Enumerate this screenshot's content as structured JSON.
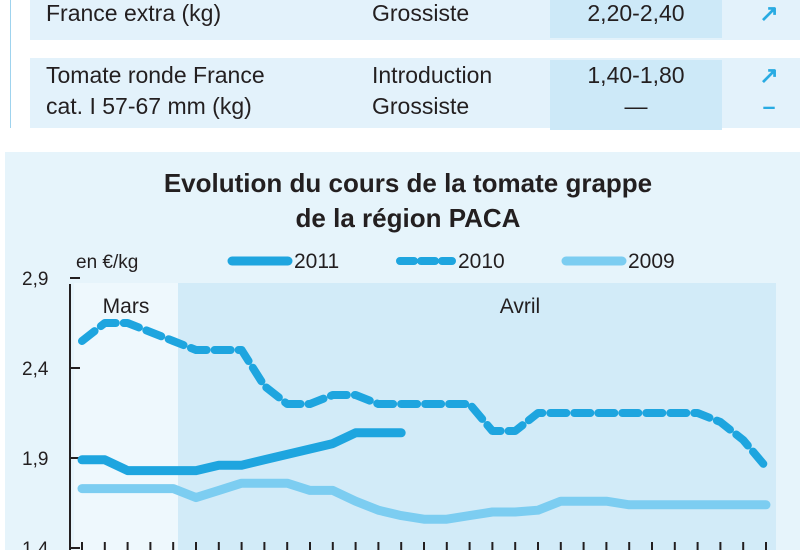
{
  "table": {
    "rows": [
      {
        "product": "France extra (kg)",
        "stage": "Grossiste",
        "price": "2,20-2,40",
        "trend": "↗"
      },
      {
        "product_line1": "Tomate ronde France",
        "product_line2": "cat. I 57-67 mm (kg)",
        "stage_line1": "Introduction",
        "stage_line2": "Grossiste",
        "price_line1": "1,40-1,80",
        "price_line2": "—",
        "trend_line1": "↗",
        "trend_line2": "–"
      }
    ]
  },
  "chart_data": {
    "type": "line",
    "title_line1": "Evolution du cours de la tomate grappe",
    "title_line2": "de la région PACA",
    "unit_label": "en €/kg",
    "ylim": [
      1.4,
      2.9
    ],
    "yticks": [
      "2,9",
      "2,4",
      "1,9",
      "1,4"
    ],
    "ytick_values": [
      2.9,
      2.4,
      1.9,
      1.4
    ],
    "months": [
      "Mars",
      "Avril"
    ],
    "series": [
      {
        "name": "2011",
        "color": "#1ea5df",
        "style": "solid-thick",
        "x": [
          0,
          1,
          2,
          3,
          4,
          5,
          6,
          7,
          8,
          9,
          10,
          11,
          12,
          13,
          14
        ],
        "values": [
          1.89,
          1.89,
          1.83,
          1.83,
          1.83,
          1.83,
          1.86,
          1.86,
          1.89,
          1.92,
          1.95,
          1.98,
          2.04,
          2.04,
          2.04
        ]
      },
      {
        "name": "2010",
        "color": "#1ea5df",
        "style": "dashed",
        "x": [
          0,
          1,
          2,
          3,
          4,
          5,
          6,
          7,
          8,
          9,
          10,
          11,
          12,
          13,
          14,
          15,
          16,
          17,
          18,
          19,
          20,
          21,
          22,
          23,
          24,
          25,
          26,
          27,
          28,
          29,
          30
        ],
        "values": [
          2.55,
          2.65,
          2.65,
          2.6,
          2.55,
          2.5,
          2.5,
          2.5,
          2.3,
          2.2,
          2.2,
          2.25,
          2.25,
          2.2,
          2.2,
          2.2,
          2.2,
          2.2,
          2.05,
          2.05,
          2.15,
          2.15,
          2.15,
          2.15,
          2.15,
          2.15,
          2.15,
          2.15,
          2.1,
          2.0,
          1.85
        ]
      },
      {
        "name": "2009",
        "color": "#7ccdf1",
        "style": "solid-light",
        "x": [
          0,
          1,
          2,
          3,
          4,
          5,
          6,
          7,
          8,
          9,
          10,
          11,
          12,
          13,
          14,
          15,
          16,
          17,
          18,
          19,
          20,
          21,
          22,
          23,
          24,
          25,
          26,
          27,
          28,
          29,
          30
        ],
        "values": [
          1.73,
          1.73,
          1.73,
          1.73,
          1.73,
          1.68,
          1.72,
          1.76,
          1.76,
          1.76,
          1.72,
          1.72,
          1.66,
          1.61,
          1.58,
          1.56,
          1.56,
          1.58,
          1.6,
          1.6,
          1.61,
          1.66,
          1.66,
          1.66,
          1.64,
          1.64,
          1.64,
          1.64,
          1.64,
          1.64,
          1.64
        ]
      }
    ],
    "xlim": [
      0,
      30
    ],
    "colors": {
      "panel": "#e6f4fb",
      "mars_band": "#eef8fd",
      "avril_band": "#d2ebf8"
    }
  }
}
